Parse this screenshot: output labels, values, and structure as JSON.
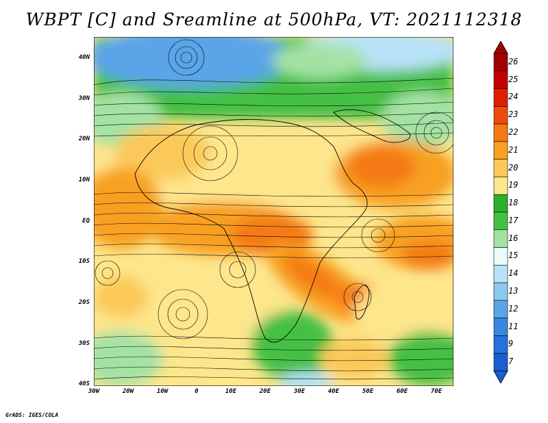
{
  "title": "WBPT [C] and Sreamline at 500hPa, VT: 2021112318",
  "credit": "GrADS: IGES/COLA",
  "y_axis_labels": [
    "40N",
    "30N",
    "20N",
    "10N",
    "EQ",
    "10S",
    "20S",
    "30S",
    "40S"
  ],
  "x_axis_labels": [
    "30W",
    "20W",
    "10W",
    "0",
    "10E",
    "20E",
    "30E",
    "40E",
    "50E",
    "60E",
    "70E"
  ],
  "colorbar": {
    "labels": [
      "26",
      "25",
      "24",
      "23",
      "22",
      "21",
      "20",
      "19",
      "18",
      "17",
      "16",
      "15",
      "14",
      "13",
      "12",
      "11",
      "9",
      "7"
    ],
    "colors": [
      "#a00000",
      "#c40000",
      "#e02000",
      "#f04a0a",
      "#f47a12",
      "#f8a020",
      "#fbc95a",
      "#fde68c",
      "#2cb02c",
      "#44c044",
      "#a4e2a4",
      "#e8fbf8",
      "#b8e2f8",
      "#8cc8f0",
      "#5aa4e8",
      "#3a86e0",
      "#2870dc",
      "#1a5ed4"
    ]
  },
  "map": {
    "lon_range": [
      -30,
      75
    ],
    "lat_range": [
      -40,
      45
    ],
    "field": "WBPT [C] at 500hPa with streamlines"
  }
}
